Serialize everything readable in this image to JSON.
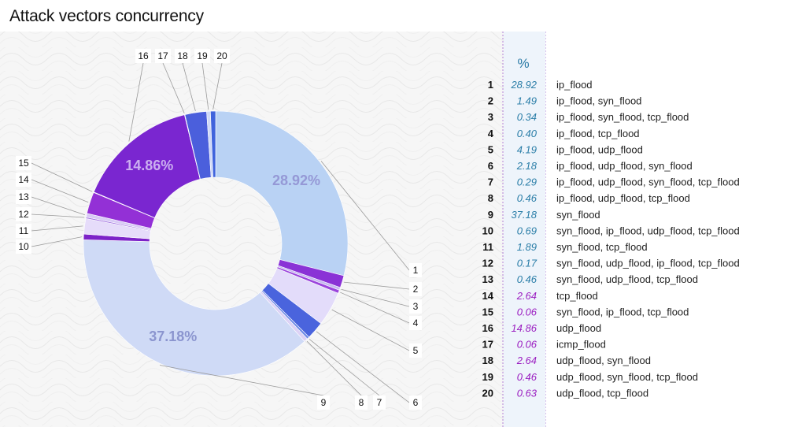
{
  "title": "Attack vectors concurrency",
  "colors": {
    "teal": "#2b7ea8",
    "purple": "#9b1fc1"
  },
  "chart_data": {
    "type": "pie",
    "title": "Attack vectors concurrency",
    "value_header": "%",
    "slices": [
      {
        "id": "1",
        "value": 28.92,
        "label": "ip_flood",
        "pct_label": "28.92%",
        "color": "#b9d2f4"
      },
      {
        "id": "2",
        "value": 1.49,
        "label": "ip_flood, syn_flood",
        "color": "#8a32d6"
      },
      {
        "id": "3",
        "value": 0.34,
        "label": "ip_flood, syn_flood, tcp_flood",
        "color": "#c6b9f0"
      },
      {
        "id": "4",
        "value": 0.4,
        "label": "ip_flood, tcp_flood",
        "color": "#9b45dc"
      },
      {
        "id": "5",
        "value": 4.19,
        "label": "ip_flood, udp_flood",
        "color": "#e3dcfa"
      },
      {
        "id": "6",
        "value": 2.18,
        "label": "ip_flood, udp_flood, syn_flood",
        "color": "#4a64dd"
      },
      {
        "id": "7",
        "value": 0.29,
        "label": "ip_flood, udp_flood, syn_flood, tcp_flood",
        "color": "#6e8ae6"
      },
      {
        "id": "8",
        "value": 0.46,
        "label": "ip_flood, udp_flood, tcp_flood",
        "color": "#dcd2f6"
      },
      {
        "id": "9",
        "value": 37.18,
        "label": "syn_flood",
        "pct_label": "37.18%",
        "color": "#cfdaf6"
      },
      {
        "id": "10",
        "value": 0.69,
        "label": "syn_flood, ip_flood, udp_flood, tcp_flood",
        "color": "#7c22c8"
      },
      {
        "id": "11",
        "value": 1.89,
        "label": "syn_flood, tcp_flood",
        "color": "#e6dcfa"
      },
      {
        "id": "12",
        "value": 0.17,
        "label": "syn_flood, udp_flood, ip_flood, tcp_flood",
        "color": "#a070e0"
      },
      {
        "id": "13",
        "value": 0.46,
        "label": "syn_flood, udp_flood, tcp_flood",
        "color": "#d8caf5"
      },
      {
        "id": "14",
        "value": 2.64,
        "label": "tcp_flood",
        "color": "#9330d6"
      },
      {
        "id": "15",
        "value": 0.06,
        "label": "syn_flood, ip_flood, tcp_flood",
        "color": "#b88ee8"
      },
      {
        "id": "16",
        "value": 14.86,
        "label": "udp_flood",
        "pct_label": "14.86%",
        "color": "#7a26d0"
      },
      {
        "id": "17",
        "value": 0.06,
        "label": "icmp_flood",
        "color": "#9aa8ec"
      },
      {
        "id": "18",
        "value": 2.64,
        "label": "udp_flood, syn_flood",
        "color": "#4b5fdc"
      },
      {
        "id": "19",
        "value": 0.46,
        "label": "udp_flood, syn_flood, tcp_flood",
        "color": "#cfd8f7"
      },
      {
        "id": "20",
        "value": 0.63,
        "label": "udp_flood, tcp_flood",
        "color": "#3f63dc"
      }
    ],
    "table_value_colors": {
      "1-13": "#2b7ea8",
      "14-20": "#9b1fc1"
    }
  }
}
